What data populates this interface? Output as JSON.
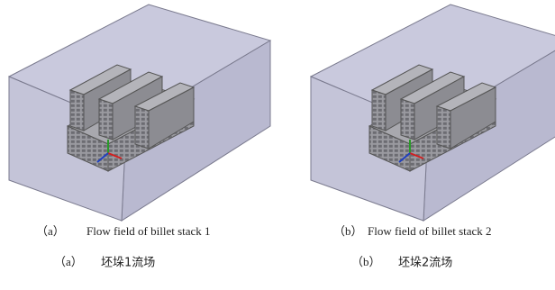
{
  "panels": [
    {
      "caption_en": {
        "label": "（a）",
        "text": "Flow field of billet stack 1"
      },
      "caption_zh": {
        "label": "（a）",
        "text": "坯垛1流场"
      }
    },
    {
      "caption_en": {
        "label": "（b）",
        "text": "Flow field of billet stack 2"
      },
      "caption_zh": {
        "label": "（b）",
        "text": "坯垛2流场"
      }
    }
  ]
}
